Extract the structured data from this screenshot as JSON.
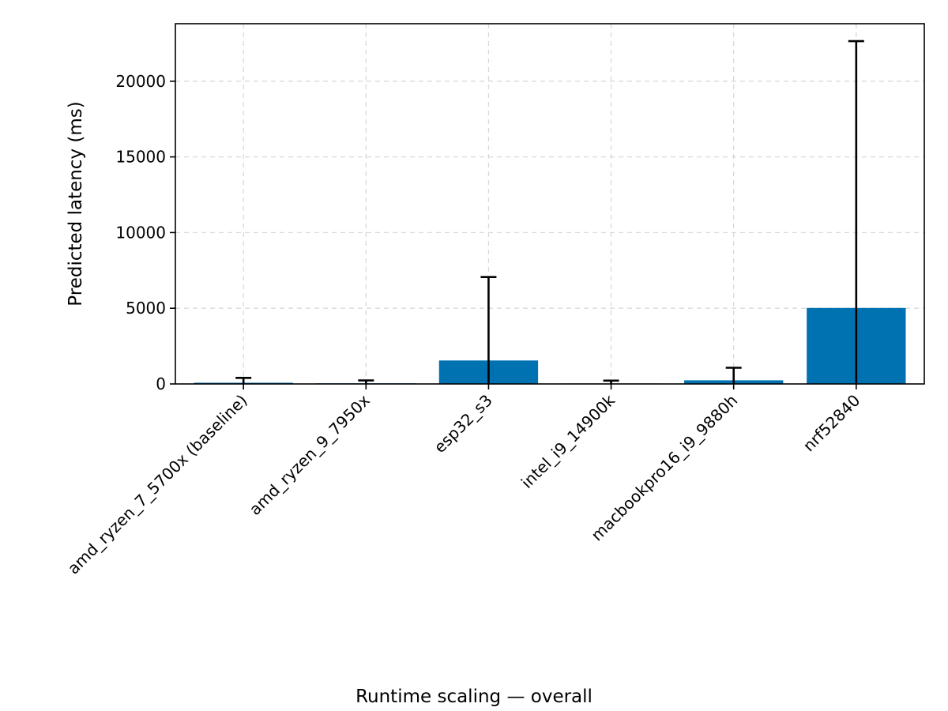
{
  "chart_data": {
    "type": "bar",
    "categories": [
      "amd_ryzen_7_5700x (baseline)",
      "amd_ryzen_9_7950x",
      "esp32_s3",
      "intel_i9_14900k",
      "macbookpro16_i9_9880h",
      "nrf52840"
    ],
    "values": [
      80,
      40,
      1550,
      30,
      240,
      5020
    ],
    "error_upper": [
      400,
      230,
      7060,
      220,
      1070,
      22650
    ],
    "error_lower": [
      0,
      0,
      0,
      0,
      0,
      0
    ],
    "title": "Runtime scaling — overall",
    "xlabel": "",
    "ylabel": "Predicted latency (ms)",
    "ylim": [
      0,
      23800
    ],
    "yticks": [
      0,
      5000,
      10000,
      15000,
      20000
    ],
    "grid": true,
    "colors": {
      "bar": "#0072b2",
      "error": "#000000",
      "grid": "#d9d9d9"
    }
  }
}
